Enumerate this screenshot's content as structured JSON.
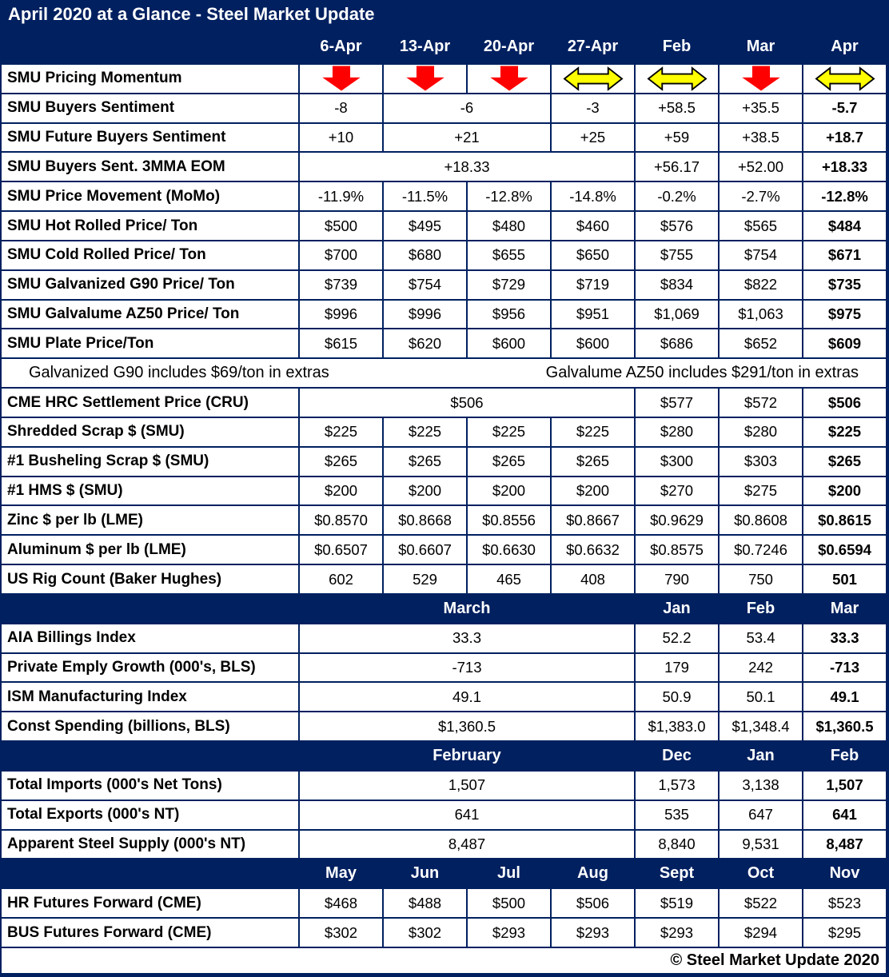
{
  "title": "April 2020 at a Glance - Steel Market Update",
  "copyright": "© Steel Market Update 2020",
  "colors": {
    "navy": "#002060",
    "arrow_red": "#ff0000",
    "arrow_yellow": "#ffff00",
    "cell_bg": "#ffffff",
    "text": "#000000"
  },
  "columns": [
    "",
    "6-Apr",
    "13-Apr",
    "20-Apr",
    "27-Apr",
    "Feb",
    "Mar",
    "Apr"
  ],
  "rows": [
    {
      "kind": "arrows",
      "label": "SMU Pricing Momentum",
      "arrows": [
        "down",
        "down",
        "down",
        "sideways",
        "sideways",
        "down",
        "sideways"
      ]
    },
    {
      "kind": "data",
      "label": "SMU Buyers Sentiment",
      "cells": [
        {
          "t": "-8"
        },
        {
          "t": "-6",
          "span": 2
        },
        {
          "t": "-3"
        },
        {
          "t": "+58.5"
        },
        {
          "t": "+35.5"
        },
        {
          "t": "-5.7",
          "b": true
        }
      ]
    },
    {
      "kind": "data",
      "label": "SMU Future Buyers Sentiment",
      "cells": [
        {
          "t": "+10"
        },
        {
          "t": "+21",
          "span": 2
        },
        {
          "t": "+25"
        },
        {
          "t": "+59"
        },
        {
          "t": "+38.5"
        },
        {
          "t": "+18.7",
          "b": true
        }
      ]
    },
    {
      "kind": "data",
      "label": "SMU Buyers Sent. 3MMA EOM",
      "cells": [
        {
          "t": "+18.33",
          "span": 4
        },
        {
          "t": "+56.17"
        },
        {
          "t": "+52.00"
        },
        {
          "t": "+18.33",
          "b": true
        }
      ]
    },
    {
      "kind": "data",
      "label": "SMU Price Movement (MoMo)",
      "cells": [
        {
          "t": "-11.9%"
        },
        {
          "t": "-11.5%"
        },
        {
          "t": "-12.8%"
        },
        {
          "t": "-14.8%"
        },
        {
          "t": "-0.2%"
        },
        {
          "t": "-2.7%"
        },
        {
          "t": "-12.8%",
          "b": true
        }
      ]
    },
    {
      "kind": "data",
      "label": "SMU Hot Rolled Price/ Ton",
      "cells": [
        {
          "t": "$500"
        },
        {
          "t": "$495"
        },
        {
          "t": "$480"
        },
        {
          "t": "$460"
        },
        {
          "t": "$576"
        },
        {
          "t": "$565"
        },
        {
          "t": "$484",
          "b": true
        }
      ]
    },
    {
      "kind": "data",
      "label": "SMU Cold Rolled Price/ Ton",
      "cells": [
        {
          "t": "$700"
        },
        {
          "t": "$680"
        },
        {
          "t": "$655"
        },
        {
          "t": "$650"
        },
        {
          "t": "$755"
        },
        {
          "t": "$754"
        },
        {
          "t": "$671",
          "b": true
        }
      ]
    },
    {
      "kind": "data",
      "label": "SMU Galvanized G90 Price/ Ton",
      "cells": [
        {
          "t": "$739"
        },
        {
          "t": "$754"
        },
        {
          "t": "$729"
        },
        {
          "t": "$719"
        },
        {
          "t": "$834"
        },
        {
          "t": "$822"
        },
        {
          "t": "$735",
          "b": true
        }
      ]
    },
    {
      "kind": "data",
      "label": "SMU Galvalume AZ50 Price/ Ton",
      "cells": [
        {
          "t": "$996"
        },
        {
          "t": "$996"
        },
        {
          "t": "$956"
        },
        {
          "t": "$951"
        },
        {
          "t": "$1,069"
        },
        {
          "t": "$1,063"
        },
        {
          "t": "$975",
          "b": true
        }
      ]
    },
    {
      "kind": "data",
      "label": "SMU Plate Price/Ton",
      "cells": [
        {
          "t": "$615"
        },
        {
          "t": "$620"
        },
        {
          "t": "$600"
        },
        {
          "t": "$600"
        },
        {
          "t": "$686"
        },
        {
          "t": "$652"
        },
        {
          "t": "$609",
          "b": true
        }
      ]
    },
    {
      "kind": "note",
      "left": "Galvanized G90 includes $69/ton in extras",
      "right": "Galvalume AZ50 includes $291/ton in extras"
    },
    {
      "kind": "data",
      "label": "CME HRC Settlement Price (CRU)",
      "cells": [
        {
          "t": "$506",
          "span": 4
        },
        {
          "t": "$577"
        },
        {
          "t": "$572"
        },
        {
          "t": "$506",
          "b": true
        }
      ]
    },
    {
      "kind": "data",
      "label": "Shredded Scrap $ (SMU)",
      "cells": [
        {
          "t": "$225"
        },
        {
          "t": "$225"
        },
        {
          "t": "$225"
        },
        {
          "t": "$225"
        },
        {
          "t": "$280"
        },
        {
          "t": "$280"
        },
        {
          "t": "$225",
          "b": true
        }
      ]
    },
    {
      "kind": "data",
      "label": "#1 Busheling Scrap $ (SMU)",
      "cells": [
        {
          "t": "$265"
        },
        {
          "t": "$265"
        },
        {
          "t": "$265"
        },
        {
          "t": "$265"
        },
        {
          "t": "$300"
        },
        {
          "t": "$303"
        },
        {
          "t": "$265",
          "b": true
        }
      ]
    },
    {
      "kind": "data",
      "label": "#1 HMS $ (SMU)",
      "cells": [
        {
          "t": "$200"
        },
        {
          "t": "$200"
        },
        {
          "t": "$200"
        },
        {
          "t": "$200"
        },
        {
          "t": "$270"
        },
        {
          "t": "$275"
        },
        {
          "t": "$200",
          "b": true
        }
      ]
    },
    {
      "kind": "data",
      "label": "Zinc $ per lb (LME)",
      "cells": [
        {
          "t": "$0.8570"
        },
        {
          "t": "$0.8668"
        },
        {
          "t": "$0.8556"
        },
        {
          "t": "$0.8667"
        },
        {
          "t": "$0.9629"
        },
        {
          "t": "$0.8608"
        },
        {
          "t": "$0.8615",
          "b": true
        }
      ]
    },
    {
      "kind": "data",
      "label": "Aluminum $ per lb (LME)",
      "cells": [
        {
          "t": "$0.6507"
        },
        {
          "t": "$0.6607"
        },
        {
          "t": "$0.6630"
        },
        {
          "t": "$0.6632"
        },
        {
          "t": "$0.8575"
        },
        {
          "t": "$0.7246"
        },
        {
          "t": "$0.6594",
          "b": true
        }
      ]
    },
    {
      "kind": "data",
      "label": "US Rig Count (Baker Hughes)",
      "cells": [
        {
          "t": "602"
        },
        {
          "t": "529"
        },
        {
          "t": "465"
        },
        {
          "t": "408"
        },
        {
          "t": "790"
        },
        {
          "t": "750"
        },
        {
          "t": "501",
          "b": true
        }
      ]
    },
    {
      "kind": "section",
      "cells": [
        {
          "t": ""
        },
        {
          "t": "March",
          "span": 4
        },
        {
          "t": "Jan"
        },
        {
          "t": "Feb"
        },
        {
          "t": "Mar"
        }
      ]
    },
    {
      "kind": "data",
      "label": "AIA Billings Index",
      "cells": [
        {
          "t": "33.3",
          "span": 4
        },
        {
          "t": "52.2"
        },
        {
          "t": "53.4"
        },
        {
          "t": "33.3",
          "b": true
        }
      ]
    },
    {
      "kind": "data",
      "label": "Private Emply Growth (000's, BLS)",
      "cells": [
        {
          "t": "-713",
          "span": 4
        },
        {
          "t": "179"
        },
        {
          "t": "242"
        },
        {
          "t": "-713",
          "b": true
        }
      ]
    },
    {
      "kind": "data",
      "label": "ISM Manufacturing Index",
      "cells": [
        {
          "t": "49.1",
          "span": 4
        },
        {
          "t": "50.9"
        },
        {
          "t": "50.1"
        },
        {
          "t": "49.1",
          "b": true
        }
      ]
    },
    {
      "kind": "data",
      "label": "Const Spending (billions, BLS)",
      "cells": [
        {
          "t": "$1,360.5",
          "span": 4
        },
        {
          "t": "$1,383.0"
        },
        {
          "t": "$1,348.4"
        },
        {
          "t": "$1,360.5",
          "b": true
        }
      ]
    },
    {
      "kind": "section",
      "cells": [
        {
          "t": ""
        },
        {
          "t": "February",
          "span": 4
        },
        {
          "t": "Dec"
        },
        {
          "t": "Jan"
        },
        {
          "t": "Feb"
        }
      ]
    },
    {
      "kind": "data",
      "label": "Total Imports (000's Net Tons)",
      "cells": [
        {
          "t": "1,507",
          "span": 4
        },
        {
          "t": "1,573"
        },
        {
          "t": "3,138"
        },
        {
          "t": "1,507",
          "b": true
        }
      ]
    },
    {
      "kind": "data",
      "label": "Total Exports (000's NT)",
      "cells": [
        {
          "t": "641",
          "span": 4
        },
        {
          "t": "535"
        },
        {
          "t": "647"
        },
        {
          "t": "641",
          "b": true
        }
      ]
    },
    {
      "kind": "data",
      "label": "Apparent Steel Supply (000's NT)",
      "cells": [
        {
          "t": "8,487",
          "span": 4
        },
        {
          "t": "8,840"
        },
        {
          "t": "9,531"
        },
        {
          "t": "8,487",
          "b": true
        }
      ]
    },
    {
      "kind": "section",
      "cells": [
        {
          "t": ""
        },
        {
          "t": "May"
        },
        {
          "t": "Jun"
        },
        {
          "t": "Jul"
        },
        {
          "t": "Aug"
        },
        {
          "t": "Sept"
        },
        {
          "t": "Oct"
        },
        {
          "t": "Nov"
        }
      ]
    },
    {
      "kind": "data",
      "label": "HR Futures Forward (CME)",
      "cells": [
        {
          "t": "$468"
        },
        {
          "t": "$488"
        },
        {
          "t": "$500"
        },
        {
          "t": "$506"
        },
        {
          "t": "$519"
        },
        {
          "t": "$522"
        },
        {
          "t": "$523"
        }
      ]
    },
    {
      "kind": "data",
      "label": "BUS Futures Forward (CME)",
      "cells": [
        {
          "t": "$302"
        },
        {
          "t": "$302"
        },
        {
          "t": "$293"
        },
        {
          "t": "$293"
        },
        {
          "t": "$293"
        },
        {
          "t": "$294"
        },
        {
          "t": "$295"
        }
      ]
    }
  ]
}
